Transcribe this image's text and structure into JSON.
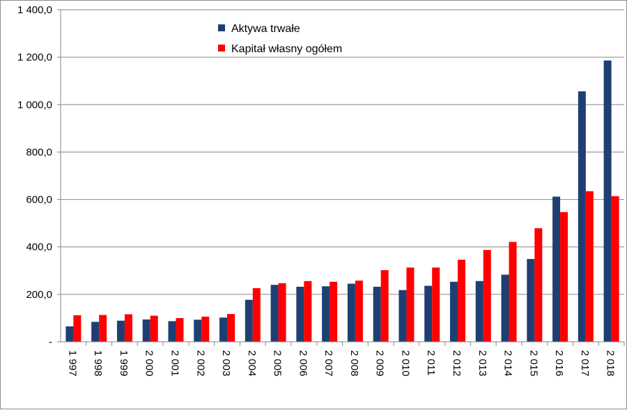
{
  "chart_data": {
    "type": "bar",
    "categories": [
      "1 997",
      "1 998",
      "1 999",
      "2 000",
      "2 001",
      "2 002",
      "2 003",
      "2 004",
      "2 005",
      "2 006",
      "2 007",
      "2 008",
      "2 009",
      "2 010",
      "2 011",
      "2 012",
      "2 013",
      "2 014",
      "2 015",
      "2 016",
      "2 017",
      "2 018"
    ],
    "series": [
      {
        "name": "Aktywa trwałe",
        "color": "#1f3f73",
        "values": [
          65,
          84,
          89,
          94,
          87,
          93,
          102,
          177,
          240,
          232,
          234,
          245,
          232,
          218,
          236,
          253,
          256,
          283,
          349,
          612,
          1056,
          1186
        ]
      },
      {
        "name": "Kapitał własny ogółem",
        "color": "#ff0000",
        "values": [
          112,
          113,
          116,
          110,
          100,
          106,
          117,
          226,
          247,
          256,
          253,
          258,
          302,
          313,
          313,
          346,
          387,
          421,
          479,
          547,
          635,
          614
        ]
      }
    ],
    "ylim": [
      0,
      1400
    ],
    "yticks": [
      0,
      200,
      400,
      600,
      800,
      1000,
      1200,
      1400
    ],
    "ytick_labels": [
      "-",
      "200,0",
      "400,0",
      "600,0",
      "800,0",
      "1 000,0",
      "1 200,0",
      "1 400,0"
    ],
    "grid": true,
    "legend_position": "top-center",
    "title": "",
    "xlabel": "",
    "ylabel": ""
  }
}
